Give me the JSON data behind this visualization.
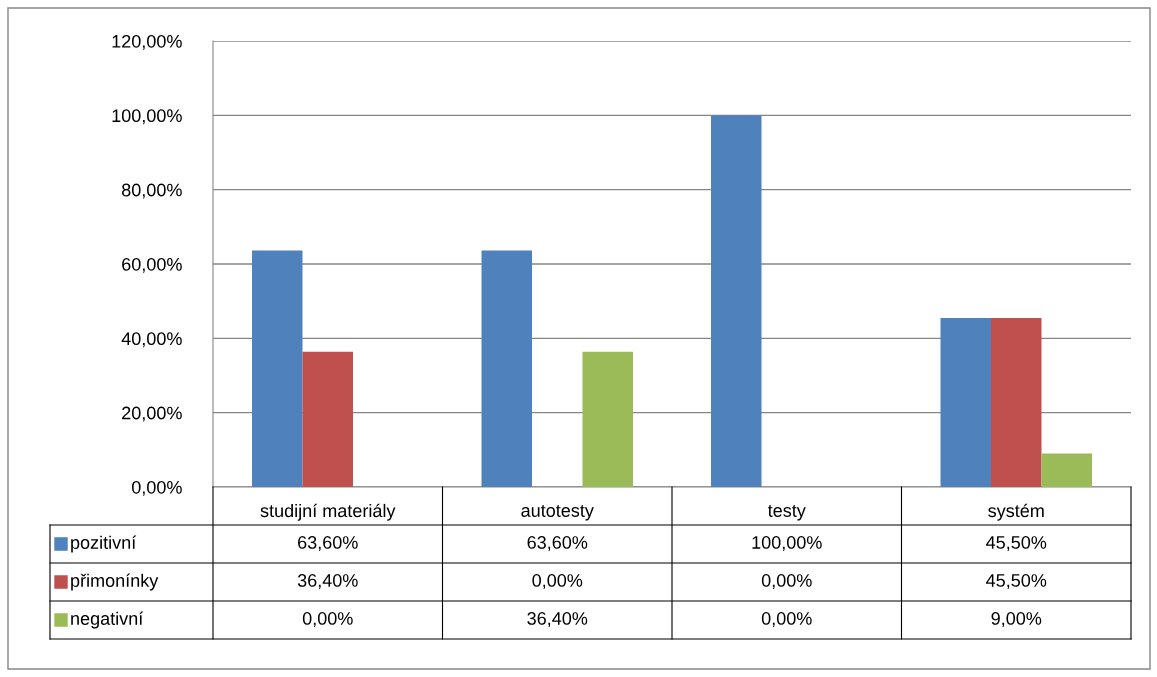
{
  "chart_data": {
    "type": "bar",
    "categories": [
      "studijní materiály",
      "autotesty",
      "testy",
      "systém"
    ],
    "series": [
      {
        "name": "pozitivní",
        "color": "#4f81bd",
        "values": [
          63.6,
          63.6,
          100,
          45.5
        ],
        "value_labels": [
          "63,60%",
          "63,60%",
          "100,00%",
          "45,50%"
        ]
      },
      {
        "name": "přimonínky",
        "color": "#c0504d",
        "values": [
          36.4,
          0,
          0,
          45.5
        ],
        "value_labels": [
          "36,40%",
          "0,00%",
          "0,00%",
          "45,50%"
        ]
      },
      {
        "name": "negativní",
        "color": "#9bbb59",
        "values": [
          0,
          36.4,
          0,
          9
        ],
        "value_labels": [
          "0,00%",
          "36,40%",
          "0,00%",
          "9,00%"
        ]
      }
    ],
    "ylim": [
      0,
      120
    ],
    "yticks": [
      {
        "value": 0,
        "label": "0,00%"
      },
      {
        "value": 20,
        "label": "20,00%"
      },
      {
        "value": 40,
        "label": "40,00%"
      },
      {
        "value": 60,
        "label": "60,00%"
      },
      {
        "value": 80,
        "label": "80,00%"
      },
      {
        "value": 100,
        "label": "100,00%"
      },
      {
        "value": 120,
        "label": "120,00%"
      }
    ],
    "grid": "y",
    "legend": "bottom"
  }
}
